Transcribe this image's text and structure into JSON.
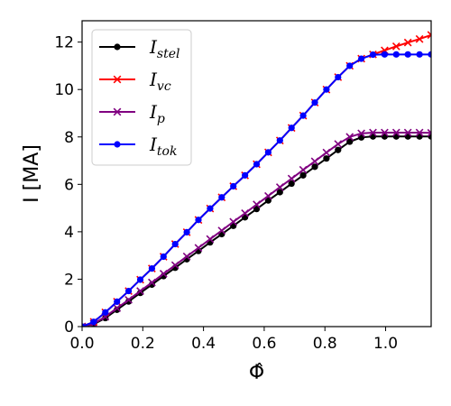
{
  "chart_data": {
    "type": "line",
    "xlabel": "Φ̂",
    "ylabel": "I [MA]",
    "xlim": [
      0.0,
      1.15
    ],
    "ylim": [
      0,
      12.9
    ],
    "xticks": [
      0.0,
      0.2,
      0.4,
      0.6,
      0.8,
      1.0
    ],
    "xtick_labels": [
      "0.0",
      "0.2",
      "0.4",
      "0.6",
      "0.8",
      "1.0"
    ],
    "yticks": [
      0,
      2,
      4,
      6,
      8,
      10,
      12
    ],
    "ytick_labels": [
      "0",
      "2",
      "4",
      "6",
      "8",
      "10",
      "12"
    ],
    "grid": false,
    "legend_position": "top-left",
    "x": [
      0.0,
      0.0383,
      0.0767,
      0.115,
      0.1533,
      0.1917,
      0.23,
      0.2683,
      0.3067,
      0.345,
      0.3833,
      0.4217,
      0.46,
      0.4983,
      0.5367,
      0.575,
      0.6133,
      0.6517,
      0.69,
      0.7283,
      0.7667,
      0.805,
      0.8433,
      0.8817,
      0.92,
      0.9583,
      0.9967,
      1.035,
      1.0733,
      1.1117,
      1.15
    ],
    "series": [
      {
        "name": "I_stel",
        "label_main": "I",
        "label_sub": "stel",
        "color": "#000000",
        "marker": "circle",
        "values": [
          0.0,
          0.1,
          0.36,
          0.71,
          1.06,
          1.42,
          1.77,
          2.13,
          2.48,
          2.84,
          3.19,
          3.55,
          3.9,
          4.25,
          4.61,
          4.96,
          5.32,
          5.67,
          6.03,
          6.38,
          6.74,
          7.09,
          7.45,
          7.8,
          7.98,
          8.02,
          8.02,
          8.02,
          8.02,
          8.02,
          8.02
        ]
      },
      {
        "name": "I_vc",
        "label_main": "I",
        "label_sub": "vc",
        "color": "#ff0000",
        "marker": "x",
        "values": [
          0.0,
          0.2,
          0.6,
          1.05,
          1.5,
          1.98,
          2.45,
          2.95,
          3.48,
          3.98,
          4.5,
          4.98,
          5.45,
          5.92,
          6.38,
          6.85,
          7.35,
          7.85,
          8.38,
          8.9,
          9.45,
          10.0,
          10.52,
          11.0,
          11.3,
          11.48,
          11.65,
          11.82,
          11.98,
          12.13,
          12.3
        ]
      },
      {
        "name": "I_p",
        "label_main": "I",
        "label_sub": "p",
        "color": "#800080",
        "marker": "x",
        "values": [
          0.0,
          0.12,
          0.42,
          0.78,
          1.13,
          1.5,
          1.86,
          2.23,
          2.59,
          2.96,
          3.32,
          3.69,
          4.05,
          4.42,
          4.78,
          5.15,
          5.51,
          5.88,
          6.24,
          6.61,
          6.97,
          7.34,
          7.7,
          8.0,
          8.15,
          8.18,
          8.18,
          8.18,
          8.18,
          8.18,
          8.17
        ]
      },
      {
        "name": "I_tok",
        "label_main": "I",
        "label_sub": "tok",
        "color": "#0000ff",
        "marker": "circle",
        "values": [
          0.0,
          0.2,
          0.6,
          1.05,
          1.5,
          1.98,
          2.45,
          2.95,
          3.48,
          3.98,
          4.5,
          4.98,
          5.45,
          5.92,
          6.38,
          6.85,
          7.35,
          7.85,
          8.38,
          8.9,
          9.45,
          10.0,
          10.52,
          11.0,
          11.3,
          11.47,
          11.48,
          11.48,
          11.48,
          11.48,
          11.48
        ]
      }
    ]
  }
}
